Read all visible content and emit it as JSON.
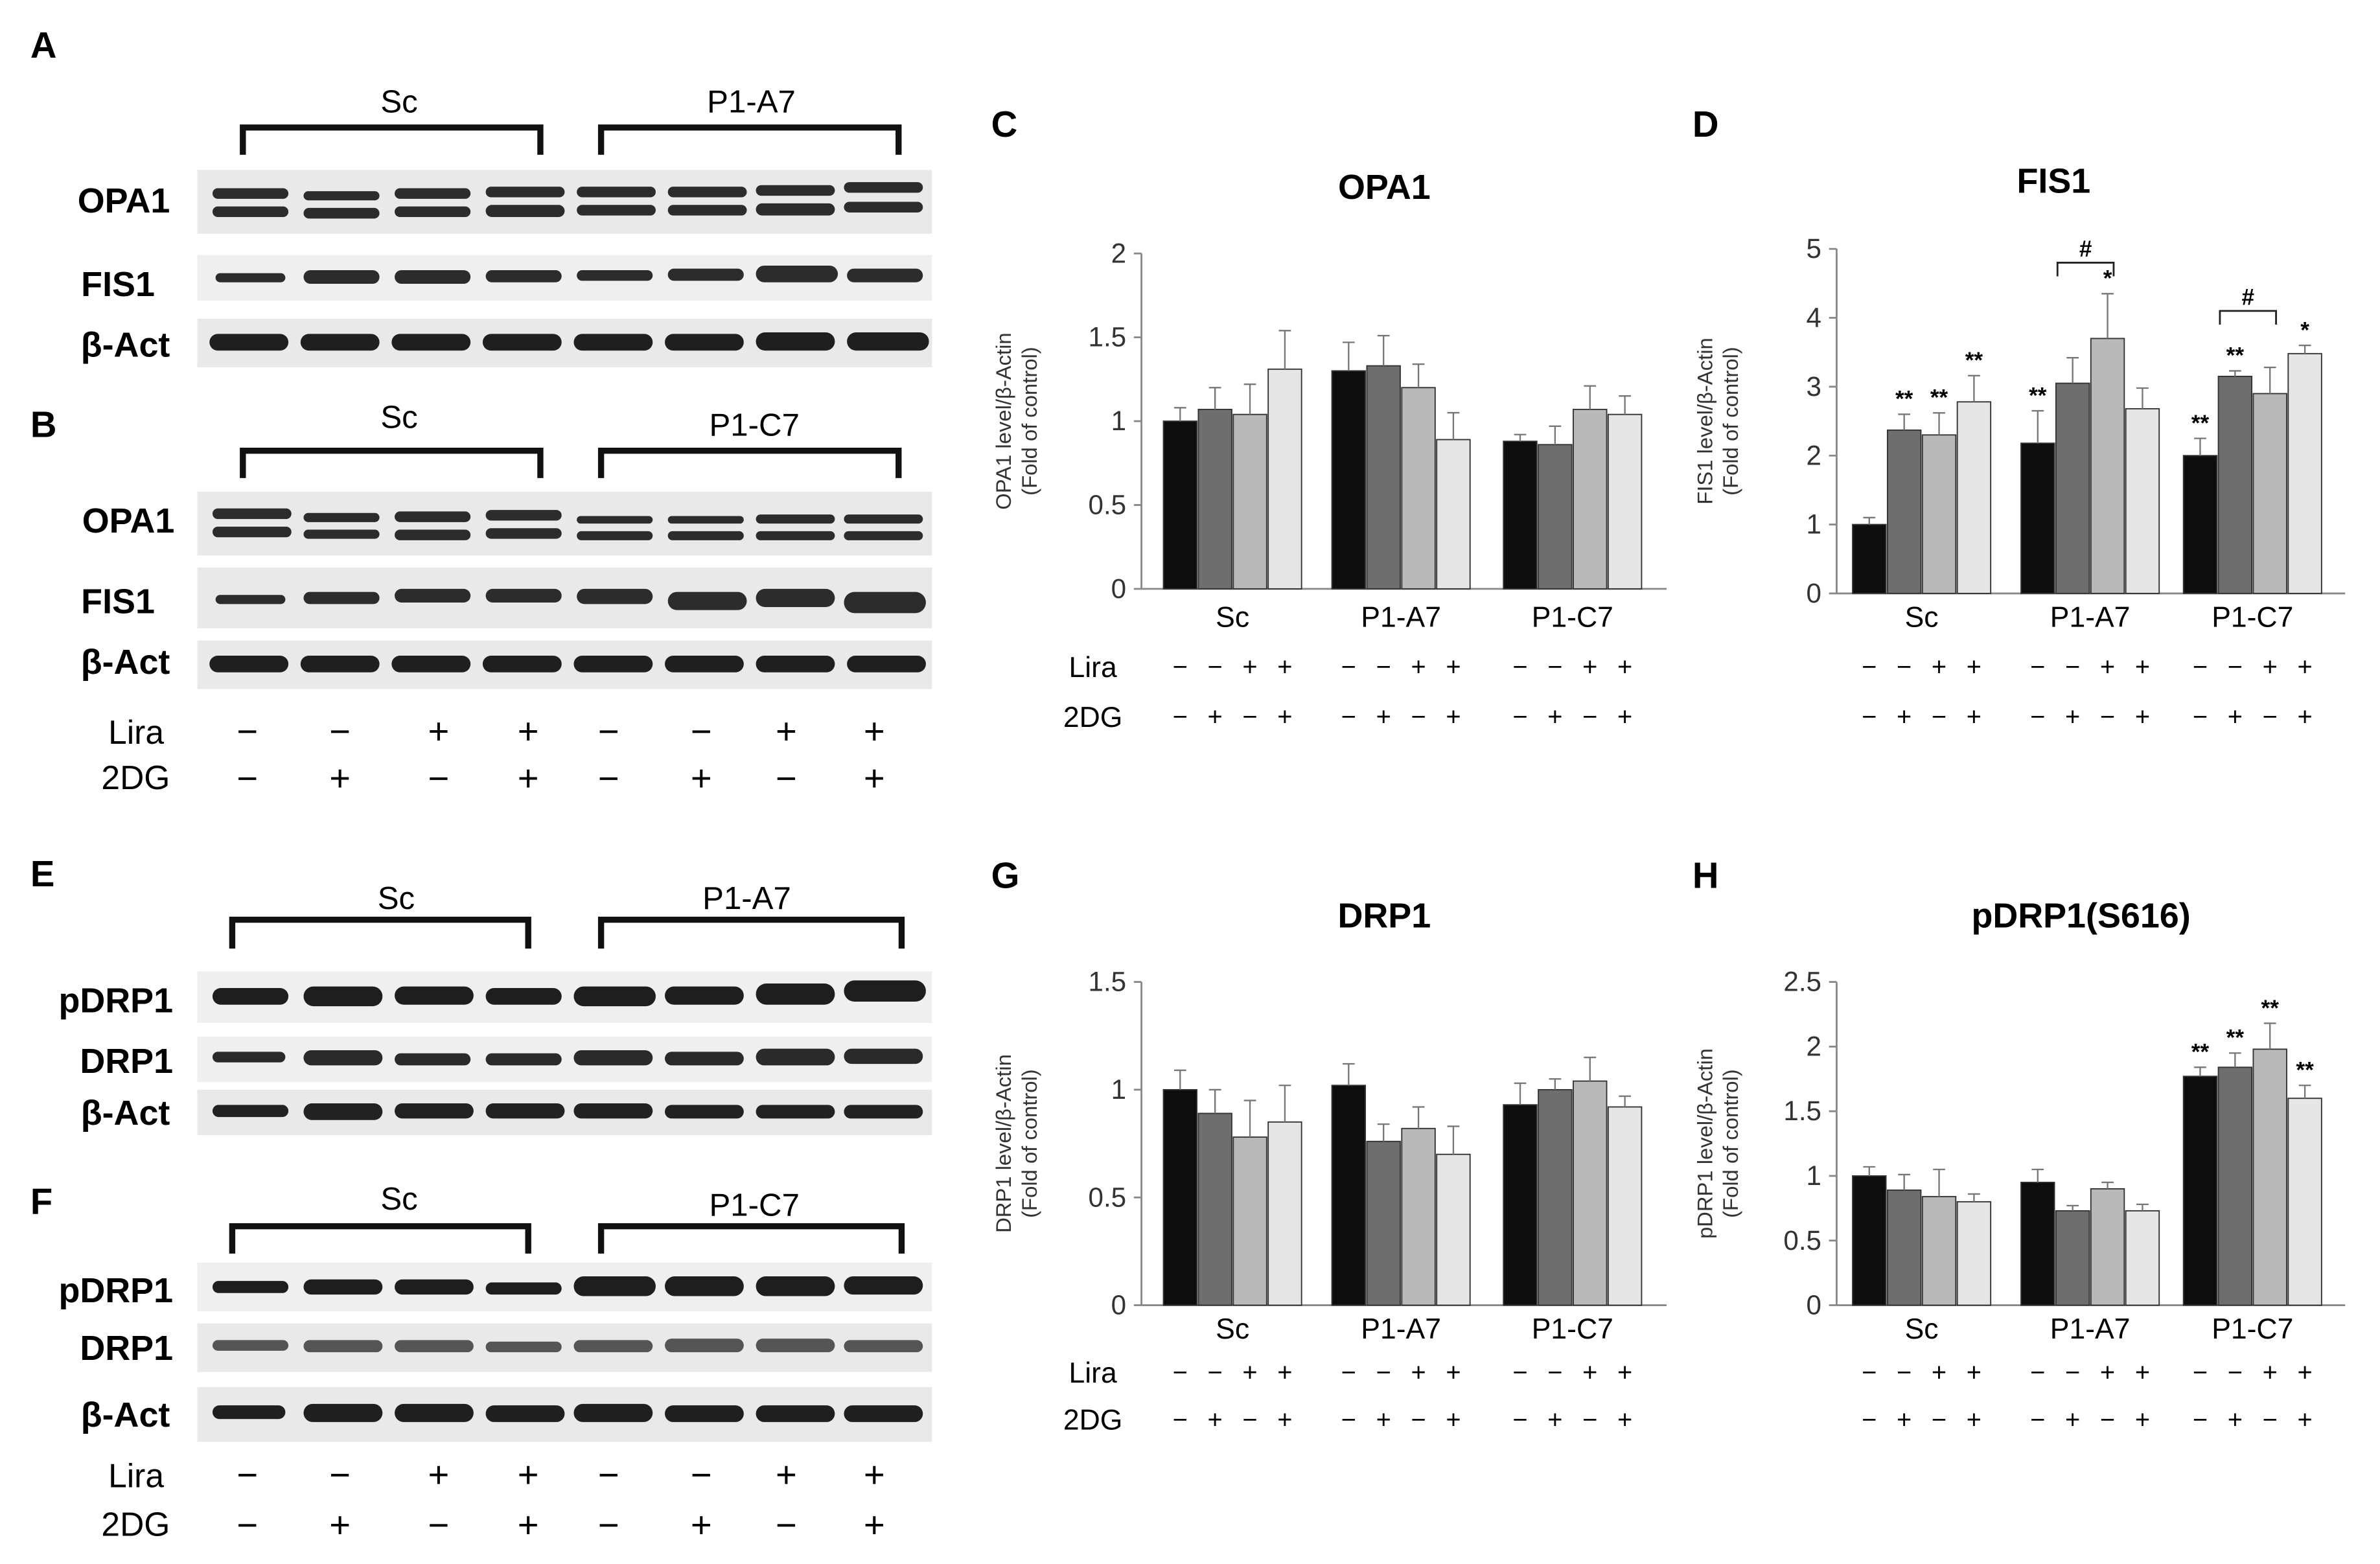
{
  "panel_letters": [
    "A",
    "B",
    "C",
    "D",
    "E",
    "F",
    "G",
    "H"
  ],
  "lira_label": "Lira",
  "dg_label": "2DG",
  "minus": "−",
  "plus": "+",
  "lira_pattern": [
    "-",
    "-",
    "+",
    "+"
  ],
  "dg_pattern": [
    "-",
    "+",
    "-",
    "+"
  ],
  "bar_colors": [
    "#0d0d0d",
    "#6e6e6e",
    "#b9b9b9",
    "#e6e6e6"
  ],
  "blots": [
    {
      "letter": "A",
      "groups": [
        "Sc",
        "P1-A7"
      ],
      "rows": [
        "OPA1",
        "FIS1",
        "β-Act"
      ]
    },
    {
      "letter": "B",
      "groups": [
        "Sc",
        "P1-C7"
      ],
      "rows": [
        "OPA1",
        "FIS1",
        "β-Act"
      ]
    },
    {
      "letter": "E",
      "groups": [
        "Sc",
        "P1-A7"
      ],
      "rows": [
        "pDRP1",
        "DRP1",
        "β-Act"
      ]
    },
    {
      "letter": "F",
      "groups": [
        "Sc",
        "P1-C7"
      ],
      "rows": [
        "pDRP1",
        "DRP1",
        "β-Act"
      ]
    }
  ],
  "chart_data": [
    {
      "type": "bar",
      "letter": "C",
      "title": "OPA1",
      "ylabel": [
        "OPA1 level/β-Actin",
        "(Fold of control)"
      ],
      "yticks": [
        "0",
        "0.5",
        "1",
        "1.5",
        "2"
      ],
      "ylim": [
        0,
        2
      ],
      "categories": [
        "Sc",
        "P1-A7",
        "P1-C7"
      ],
      "values": [
        [
          1.0,
          1.07,
          1.04,
          1.31
        ],
        [
          1.3,
          1.33,
          1.2,
          0.89
        ],
        [
          0.88,
          0.86,
          1.07,
          1.04
        ]
      ],
      "errors": [
        [
          0.08,
          0.13,
          0.18,
          0.23
        ],
        [
          0.17,
          0.18,
          0.14,
          0.16
        ],
        [
          0.04,
          0.11,
          0.14,
          0.11
        ]
      ],
      "marks": [
        [
          "",
          "",
          "",
          ""
        ],
        [
          "",
          "",
          "",
          ""
        ],
        [
          "",
          "",
          "",
          ""
        ]
      ],
      "brackets": [],
      "show_treat_labels": true
    },
    {
      "type": "bar",
      "letter": "D",
      "title": "FIS1",
      "ylabel": [
        "FIS1 level/β-Actin",
        "(Fold of control)"
      ],
      "yticks": [
        "0",
        "1",
        "2",
        "3",
        "4",
        "5"
      ],
      "ylim": [
        0,
        5
      ],
      "categories": [
        "Sc",
        "P1-A7",
        "P1-C7"
      ],
      "values": [
        [
          1.0,
          2.37,
          2.3,
          2.78
        ],
        [
          2.18,
          3.05,
          3.7,
          2.68
        ],
        [
          2.0,
          3.15,
          2.9,
          3.48
        ]
      ],
      "errors": [
        [
          0.1,
          0.23,
          0.32,
          0.38
        ],
        [
          0.47,
          0.37,
          0.65,
          0.3
        ],
        [
          0.25,
          0.08,
          0.38,
          0.12
        ]
      ],
      "marks": [
        [
          "",
          "**",
          "**",
          "**"
        ],
        [
          "**",
          "",
          "*",
          ""
        ],
        [
          "**",
          "**",
          "",
          "*"
        ]
      ],
      "brackets": [
        {
          "group": 1,
          "from": 1,
          "to": 2,
          "y": 4.8,
          "label": "#"
        },
        {
          "group": 2,
          "from": 1,
          "to": 2,
          "y": 4.1,
          "label": "#"
        }
      ],
      "show_treat_labels": false
    },
    {
      "type": "bar",
      "letter": "G",
      "title": "DRP1",
      "ylabel": [
        "DRP1 level/β-Actin",
        "(Fold of control)"
      ],
      "yticks": [
        "0",
        "0.5",
        "1",
        "1.5"
      ],
      "ylim": [
        0,
        1.5
      ],
      "categories": [
        "Sc",
        "P1-A7",
        "P1-C7"
      ],
      "values": [
        [
          1.0,
          0.89,
          0.78,
          0.85
        ],
        [
          1.02,
          0.76,
          0.82,
          0.7
        ],
        [
          0.93,
          1.0,
          1.04,
          0.92
        ]
      ],
      "errors": [
        [
          0.09,
          0.11,
          0.17,
          0.17
        ],
        [
          0.1,
          0.08,
          0.1,
          0.13
        ],
        [
          0.1,
          0.05,
          0.11,
          0.05
        ]
      ],
      "marks": [
        [
          "",
          "",
          "",
          ""
        ],
        [
          "",
          "",
          "",
          ""
        ],
        [
          "",
          "",
          "",
          ""
        ]
      ],
      "brackets": [],
      "show_treat_labels": true
    },
    {
      "type": "bar",
      "letter": "H",
      "title": "pDRP1(S616)",
      "ylabel": [
        "pDRP1 level/β-Actin",
        "(Fold of control)"
      ],
      "yticks": [
        "0",
        "0.5",
        "1",
        "1.5",
        "2",
        "2.5"
      ],
      "ylim": [
        0,
        2.5
      ],
      "categories": [
        "Sc",
        "P1-A7",
        "P1-C7"
      ],
      "values": [
        [
          1.0,
          0.89,
          0.84,
          0.8
        ],
        [
          0.95,
          0.73,
          0.9,
          0.73
        ],
        [
          1.77,
          1.84,
          1.98,
          1.6
        ]
      ],
      "errors": [
        [
          0.07,
          0.12,
          0.21,
          0.06
        ],
        [
          0.1,
          0.04,
          0.05,
          0.05
        ],
        [
          0.07,
          0.11,
          0.2,
          0.1
        ]
      ],
      "marks": [
        [
          "",
          "",
          "",
          ""
        ],
        [
          "",
          "",
          "",
          ""
        ],
        [
          "**",
          "**",
          "**",
          "**"
        ]
      ],
      "brackets": [],
      "show_treat_labels": false
    }
  ]
}
